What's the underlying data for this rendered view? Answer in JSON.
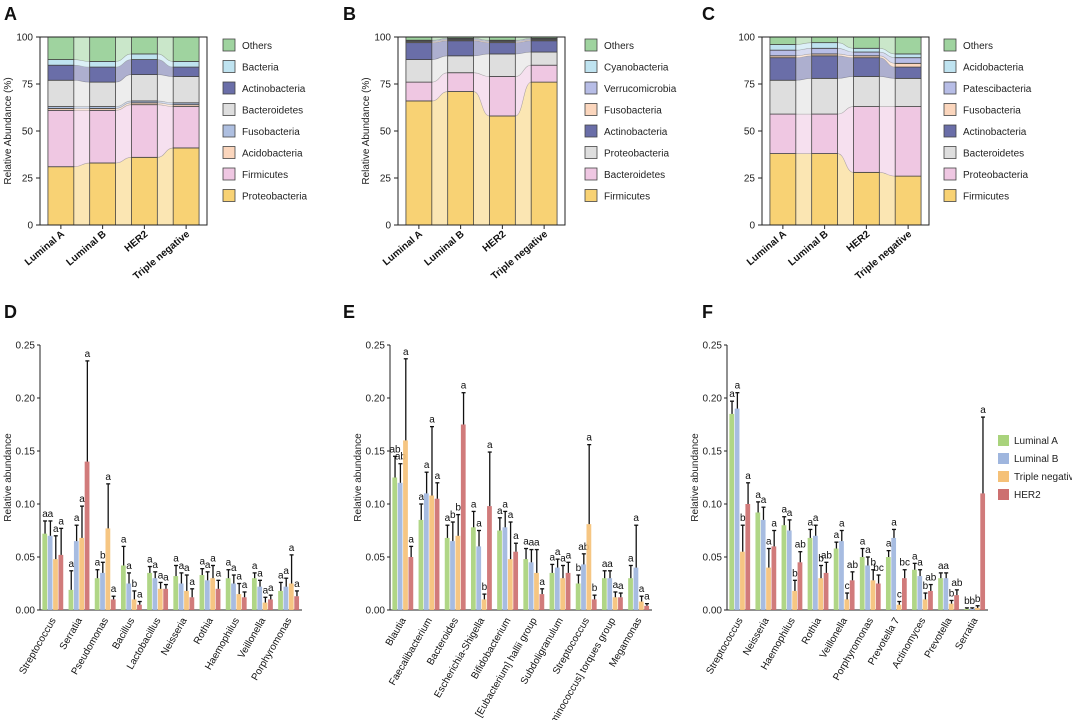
{
  "figure": {
    "panel_labels": [
      "A",
      "B",
      "C",
      "D",
      "E",
      "F"
    ]
  },
  "colors": {
    "green": "#9fd39f",
    "lightblue": "#bfe3f0",
    "lavender": "#b7bde6",
    "darkslate": "#6a6ea8",
    "gray": "#dedede",
    "blue": "#aebfe0",
    "peach": "#fbd6bd",
    "pink": "#efc7e2",
    "yellow": "#f8d274",
    "lumA": "#a9d37c",
    "lumB": "#9fb6de",
    "tn": "#f5c178",
    "her2": "#cd7070"
  },
  "chart_data": [
    {
      "panel": "A",
      "type": "area",
      "title": "",
      "xlabel": "",
      "ylabel": "Relative Abundance (%)",
      "ylim": [
        0,
        100
      ],
      "yticks": [
        "0",
        "25",
        "50",
        "75",
        "100"
      ],
      "categories": [
        "Luminal A",
        "Luminal B",
        "HER2",
        "Triple negative"
      ],
      "legend": [
        "Others",
        "Bacteria",
        "Actinobacteria",
        "Bacteroidetes",
        "Fusobacteria",
        "Acidobacteria",
        "Firmicutes",
        "Proteobacteria"
      ],
      "legend_colors": [
        "green",
        "lightblue",
        "darkslate",
        "gray",
        "blue",
        "peach",
        "pink",
        "yellow"
      ],
      "series": [
        {
          "name": "Proteobacteria",
          "color": "yellow",
          "values": [
            31,
            33,
            36,
            41
          ]
        },
        {
          "name": "Firmicutes",
          "color": "pink",
          "values": [
            30,
            28,
            28,
            22
          ]
        },
        {
          "name": "Acidobacteria",
          "color": "peach",
          "values": [
            1,
            1,
            1,
            1
          ]
        },
        {
          "name": "Fusobacteria",
          "color": "blue",
          "values": [
            1,
            1,
            1,
            1
          ]
        },
        {
          "name": "Bacteroidetes",
          "color": "gray",
          "values": [
            14,
            13,
            14,
            14
          ]
        },
        {
          "name": "Actinobacteria",
          "color": "darkslate",
          "values": [
            8,
            8,
            8,
            5
          ]
        },
        {
          "name": "Bacteria",
          "color": "lightblue",
          "values": [
            3,
            3,
            3,
            3
          ]
        },
        {
          "name": "Others",
          "color": "green",
          "values": [
            12,
            13,
            9,
            13
          ]
        }
      ]
    },
    {
      "panel": "B",
      "type": "area",
      "title": "",
      "xlabel": "",
      "ylabel": "Relative Abundance (%)",
      "ylim": [
        0,
        100
      ],
      "yticks": [
        "0",
        "25",
        "50",
        "75",
        "100"
      ],
      "categories": [
        "Luminal A",
        "Luminal B",
        "HER2",
        "Triple negative"
      ],
      "legend": [
        "Others",
        "Cyanobacteria",
        "Verrucomicrobia",
        "Fusobacteria",
        "Actinobacteria",
        "Proteobacteria",
        "Bacteroidetes",
        "Firmicutes"
      ],
      "legend_colors": [
        "green",
        "lightblue",
        "lavender",
        "peach",
        "darkslate",
        "gray",
        "pink",
        "yellow"
      ],
      "series": [
        {
          "name": "Firmicutes",
          "color": "yellow",
          "values": [
            66,
            71,
            58,
            76
          ]
        },
        {
          "name": "Bacteroidetes",
          "color": "pink",
          "values": [
            10,
            10,
            21,
            9
          ]
        },
        {
          "name": "Proteobacteria",
          "color": "gray",
          "values": [
            12,
            9,
            12,
            7
          ]
        },
        {
          "name": "Actinobacteria",
          "color": "darkslate",
          "values": [
            9,
            8,
            6,
            6
          ]
        },
        {
          "name": "Fusobacteria",
          "color": "peach",
          "values": [
            0.5,
            0.5,
            0.5,
            0.5
          ]
        },
        {
          "name": "Verrucomicrobia",
          "color": "lavender",
          "values": [
            0.5,
            0.5,
            0.5,
            0.5
          ]
        },
        {
          "name": "Cyanobacteria",
          "color": "lightblue",
          "values": [
            0.3,
            0.3,
            0.3,
            0.3
          ]
        },
        {
          "name": "Others",
          "color": "green",
          "values": [
            1.7,
            0.7,
            1.7,
            0.7
          ]
        }
      ]
    },
    {
      "panel": "C",
      "type": "area",
      "title": "",
      "xlabel": "",
      "ylabel": "",
      "ylim": [
        0,
        100
      ],
      "yticks": [
        "0",
        "25",
        "50",
        "75",
        "100"
      ],
      "categories": [
        "Luminal A",
        "Luminal B",
        "HER2",
        "Triple negative"
      ],
      "legend": [
        "Others",
        "Acidobacteria",
        "Patescibacteria",
        "Fusobacteria",
        "Actinobacteria",
        "Bacteroidetes",
        "Proteobacteria",
        "Firmicutes"
      ],
      "legend_colors": [
        "green",
        "lightblue",
        "lavender",
        "peach",
        "darkslate",
        "gray",
        "pink",
        "yellow"
      ],
      "series": [
        {
          "name": "Firmicutes",
          "color": "yellow",
          "values": [
            38,
            38,
            28,
            26
          ]
        },
        {
          "name": "Proteobacteria",
          "color": "pink",
          "values": [
            21,
            21,
            35,
            37
          ]
        },
        {
          "name": "Bacteroidetes",
          "color": "gray",
          "values": [
            18,
            19,
            16,
            15
          ]
        },
        {
          "name": "Actinobacteria",
          "color": "darkslate",
          "values": [
            12,
            12,
            10,
            6
          ]
        },
        {
          "name": "Fusobacteria",
          "color": "peach",
          "values": [
            1,
            1,
            1,
            2
          ]
        },
        {
          "name": "Patescibacteria",
          "color": "lavender",
          "values": [
            3,
            3,
            2,
            3
          ]
        },
        {
          "name": "Acidobacteria",
          "color": "lightblue",
          "values": [
            3,
            3,
            2,
            2
          ]
        },
        {
          "name": "Others",
          "color": "green",
          "values": [
            4,
            3,
            6,
            9
          ]
        }
      ]
    },
    {
      "panel": "D",
      "type": "bar",
      "title": "",
      "xlabel": "",
      "ylabel": "Relative abundance",
      "ylim": [
        0,
        0.25
      ],
      "yticks": [
        "0.00",
        "0.05",
        "0.10",
        "0.15",
        "0.20",
        "0.25"
      ],
      "categories": [
        "Streptococcus",
        "Serratia",
        "Pseudomonas",
        "Bacillus",
        "Lactobacillus",
        "Neisseria",
        "Rothia",
        "Haemophilus",
        "Veillonella",
        "Porphyromonas"
      ],
      "series": [
        {
          "name": "Luminal A",
          "color": "lumA",
          "values": [
            0.072,
            0.019,
            0.03,
            0.042,
            0.035,
            0.032,
            0.033,
            0.03,
            0.03,
            0.018
          ],
          "errors": [
            0.012,
            0.018,
            0.008,
            0.018,
            0.006,
            0.01,
            0.006,
            0.008,
            0.005,
            0.008
          ],
          "labels": [
            "a",
            "a",
            "a",
            "a",
            "a",
            "a",
            "a",
            "a",
            "a",
            "a"
          ]
        },
        {
          "name": "Luminal B",
          "color": "lumB",
          "values": [
            0.07,
            0.065,
            0.035,
            0.025,
            0.03,
            0.025,
            0.028,
            0.025,
            0.022,
            0.022
          ],
          "errors": [
            0.014,
            0.015,
            0.01,
            0.01,
            0.006,
            0.01,
            0.008,
            0.008,
            0.006,
            0.008
          ],
          "labels": [
            "a",
            "a",
            "b",
            "a",
            "a",
            "a",
            "a",
            "a",
            "a",
            "a"
          ]
        },
        {
          "name": "Triple negative",
          "color": "tn",
          "values": [
            0.048,
            0.068,
            0.077,
            0.01,
            0.02,
            0.018,
            0.03,
            0.015,
            0.007,
            0.025
          ],
          "errors": [
            0.022,
            0.03,
            0.042,
            0.008,
            0.006,
            0.015,
            0.012,
            0.01,
            0.005,
            0.027
          ],
          "labels": [
            "a",
            "a",
            "a",
            "b",
            "a",
            "a",
            "a",
            "a",
            "a",
            "a"
          ]
        },
        {
          "name": "HER2",
          "color": "her2",
          "values": [
            0.052,
            0.14,
            0.01,
            0.005,
            0.02,
            0.012,
            0.02,
            0.012,
            0.01,
            0.013
          ],
          "errors": [
            0.025,
            0.095,
            0.003,
            0.003,
            0.004,
            0.008,
            0.008,
            0.005,
            0.004,
            0.005
          ],
          "labels": [
            "a",
            "a",
            "a",
            "a",
            "a",
            "a",
            "a",
            "a",
            "a",
            "a"
          ]
        }
      ]
    },
    {
      "panel": "E",
      "type": "bar",
      "title": "",
      "xlabel": "",
      "ylabel": "Relative abundance",
      "ylim": [
        0,
        0.25
      ],
      "yticks": [
        "0.00",
        "0.05",
        "0.10",
        "0.15",
        "0.20",
        "0.25"
      ],
      "categories": [
        "Blautia",
        "Faecalibacterium",
        "Bacteroides",
        "Escherichia-Shigella",
        "Bifidobacterium",
        "[Eubacterium] hallii group",
        "Subdoligranulum",
        "Streptococcus",
        "[Ruminococcus] torques group",
        "Megamonas"
      ],
      "series": [
        {
          "name": "Luminal A",
          "color": "lumA",
          "values": [
            0.125,
            0.085,
            0.068,
            0.078,
            0.075,
            0.048,
            0.035,
            0.025,
            0.03,
            0.03
          ],
          "errors": [
            0.02,
            0.015,
            0.012,
            0.015,
            0.012,
            0.01,
            0.008,
            0.008,
            0.007,
            0.012
          ],
          "labels": [
            "ab",
            "a",
            "a",
            "a",
            "a",
            "a",
            "a",
            "b",
            "a",
            "a"
          ]
        },
        {
          "name": "Luminal B",
          "color": "lumB",
          "values": [
            0.12,
            0.11,
            0.065,
            0.06,
            0.078,
            0.045,
            0.04,
            0.043,
            0.03,
            0.04
          ],
          "errors": [
            0.018,
            0.02,
            0.018,
            0.015,
            0.015,
            0.012,
            0.008,
            0.01,
            0.007,
            0.04
          ],
          "labels": [
            "ab",
            "a",
            "b",
            "a",
            "a",
            "a",
            "a",
            "ab",
            "a",
            "a"
          ]
        },
        {
          "name": "Triple negative",
          "color": "tn",
          "values": [
            0.16,
            0.108,
            0.07,
            0.01,
            0.048,
            0.035,
            0.03,
            0.081,
            0.012,
            0.008
          ],
          "errors": [
            0.077,
            0.065,
            0.02,
            0.005,
            0.035,
            0.022,
            0.012,
            0.075,
            0.005,
            0.005
          ],
          "labels": [
            "a",
            "a",
            "b",
            "b",
            "a",
            "a",
            "a",
            "a",
            "a",
            "a"
          ]
        },
        {
          "name": "HER2",
          "color": "her2",
          "values": [
            0.05,
            0.105,
            0.175,
            0.098,
            0.055,
            0.015,
            0.035,
            0.01,
            0.012,
            0.004
          ],
          "errors": [
            0.01,
            0.015,
            0.03,
            0.051,
            0.008,
            0.005,
            0.01,
            0.004,
            0.004,
            0.002
          ],
          "labels": [
            "a",
            "a",
            "a",
            "a",
            "a",
            "a",
            "a",
            "b",
            "a",
            "a"
          ]
        }
      ]
    },
    {
      "panel": "F",
      "type": "bar",
      "title": "",
      "xlabel": "",
      "ylabel": "Relative abundance",
      "ylim": [
        0,
        0.25
      ],
      "yticks": [
        "0.00",
        "0.05",
        "0.10",
        "0.15",
        "0.20",
        "0.25"
      ],
      "categories": [
        "Streptococcus",
        "Neisseria",
        "Haemophilus",
        "Rothia",
        "Veillonella",
        "Porphyromonas",
        "Prevotella 7",
        "Actinomyces",
        "Prevotella",
        "Serratia"
      ],
      "series": [
        {
          "name": "Luminal A",
          "color": "lumA",
          "values": [
            0.185,
            0.092,
            0.08,
            0.068,
            0.058,
            0.05,
            0.05,
            0.038,
            0.03,
            0.001
          ],
          "errors": [
            0.012,
            0.01,
            0.008,
            0.008,
            0.006,
            0.008,
            0.006,
            0.006,
            0.005,
            0.001
          ],
          "labels": [
            "a",
            "a",
            "a",
            "a",
            "a",
            "a",
            "a",
            "a",
            "a",
            "b"
          ]
        },
        {
          "name": "Luminal B",
          "color": "lumB",
          "values": [
            0.19,
            0.085,
            0.075,
            0.07,
            0.065,
            0.042,
            0.068,
            0.032,
            0.03,
            0.001
          ],
          "errors": [
            0.015,
            0.012,
            0.01,
            0.01,
            0.01,
            0.008,
            0.008,
            0.006,
            0.005,
            0.001
          ],
          "labels": [
            "a",
            "a",
            "a",
            "a",
            "a",
            "a",
            "a",
            "a",
            "a",
            "b"
          ]
        },
        {
          "name": "Triple negative",
          "color": "tn",
          "values": [
            0.055,
            0.04,
            0.018,
            0.03,
            0.01,
            0.028,
            0.005,
            0.01,
            0.006,
            0.002
          ],
          "errors": [
            0.025,
            0.018,
            0.01,
            0.012,
            0.006,
            0.01,
            0.003,
            0.006,
            0.003,
            0.002
          ],
          "labels": [
            "b",
            "a",
            "b",
            "b",
            "c",
            "b",
            "c",
            "b",
            "b",
            "b"
          ]
        },
        {
          "name": "HER2",
          "color": "her2",
          "values": [
            0.1,
            0.06,
            0.045,
            0.035,
            0.028,
            0.025,
            0.03,
            0.018,
            0.014,
            0.11
          ],
          "errors": [
            0.02,
            0.015,
            0.01,
            0.01,
            0.008,
            0.008,
            0.008,
            0.006,
            0.005,
            0.072
          ],
          "labels": [
            "a",
            "a",
            "ab",
            "ab",
            "ab",
            "bc",
            "bc",
            "ab",
            "ab",
            "a"
          ]
        }
      ],
      "legend": [
        "Luminal A",
        "Luminal B",
        "Triple negative",
        "HER2"
      ],
      "legend_colors": [
        "lumA",
        "lumB",
        "tn",
        "her2"
      ]
    }
  ]
}
